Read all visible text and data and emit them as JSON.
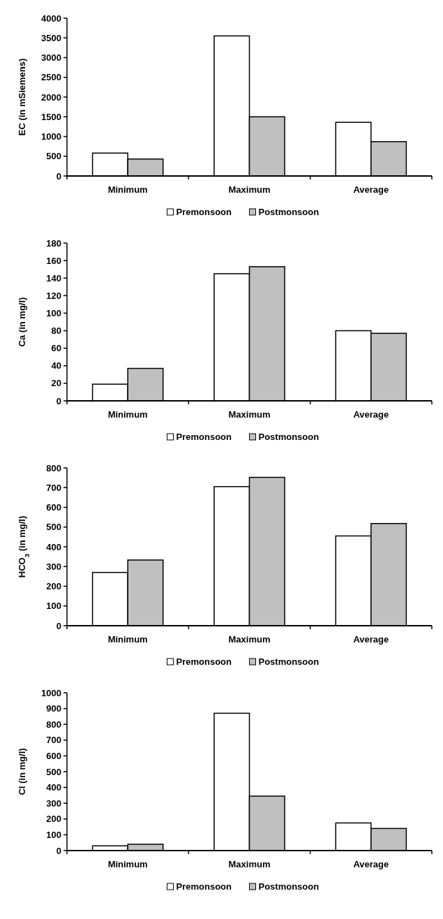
{
  "chart_data": [
    {
      "type": "bar",
      "ylabel": "EC (in mSiemens)",
      "categories": [
        "Minimum",
        "Maximum",
        "Average"
      ],
      "series": [
        {
          "name": "Premonsoon",
          "color": "#ffffff",
          "values": [
            580,
            3550,
            1360
          ]
        },
        {
          "name": "Postmonsoon",
          "color": "#c0c0c0",
          "values": [
            430,
            1500,
            870
          ]
        }
      ],
      "ylim": [
        0,
        4000
      ],
      "yticks": [
        0,
        500,
        1000,
        1500,
        2000,
        2500,
        3000,
        3500,
        4000
      ],
      "legend": "bottom"
    },
    {
      "type": "bar",
      "ylabel": "Ca (in mg/l)",
      "categories": [
        "Minimum",
        "Maximum",
        "Average"
      ],
      "series": [
        {
          "name": "Premonsoon",
          "color": "#ffffff",
          "values": [
            19,
            145,
            80
          ]
        },
        {
          "name": "Postmonsoon",
          "color": "#c0c0c0",
          "values": [
            37,
            153,
            77
          ]
        }
      ],
      "ylim": [
        0,
        180
      ],
      "yticks": [
        0,
        20,
        40,
        60,
        80,
        100,
        120,
        140,
        160,
        180
      ],
      "legend": "bottom"
    },
    {
      "type": "bar",
      "ylabel": "HCO$_{3}$ (in mg/l)",
      "categories": [
        "Minimum",
        "Maximum",
        "Average"
      ],
      "series": [
        {
          "name": "Premonsoon",
          "color": "#ffffff",
          "values": [
            270,
            705,
            455
          ]
        },
        {
          "name": "Postmonsoon",
          "color": "#c0c0c0",
          "values": [
            333,
            752,
            518
          ]
        }
      ],
      "ylim": [
        0,
        800
      ],
      "yticks": [
        0,
        100,
        200,
        300,
        400,
        500,
        600,
        700,
        800
      ],
      "legend": "bottom"
    },
    {
      "type": "bar",
      "ylabel": "Cl (in mg/l)",
      "categories": [
        "Minimum",
        "Maximum",
        "Average"
      ],
      "series": [
        {
          "name": "Premonsoon",
          "color": "#ffffff",
          "values": [
            30,
            870,
            175
          ]
        },
        {
          "name": "Postmonsoon",
          "color": "#c0c0c0",
          "values": [
            40,
            345,
            140
          ]
        }
      ],
      "ylim": [
        0,
        1000
      ],
      "yticks": [
        0,
        100,
        200,
        300,
        400,
        500,
        600,
        700,
        800,
        900,
        1000
      ],
      "legend": "bottom"
    }
  ]
}
